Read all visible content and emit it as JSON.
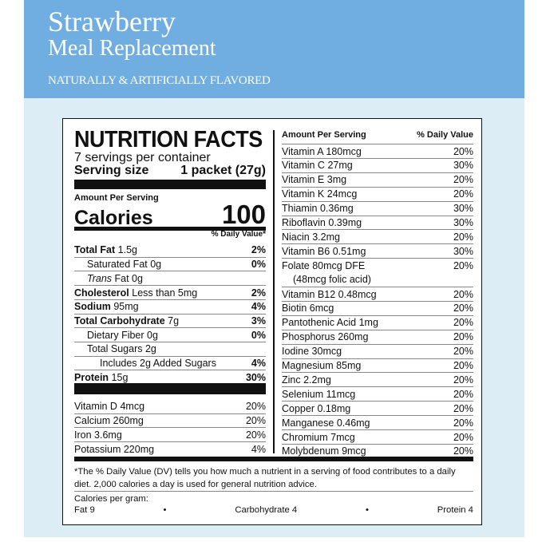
{
  "header": {
    "flavor": "Strawberry",
    "product": "Meal Replacement",
    "flavoring": "NATURALLY & ARTIFICIALLY FLAVORED"
  },
  "colors": {
    "band": "#70ade0",
    "background": "#dcedf6"
  },
  "label": {
    "title": "NUTRITION FACTS",
    "servings": "7 servings per container",
    "serving_size_label": "Serving size",
    "serving_size_value": "1 packet (27g)",
    "amount_per_serving": "Amount Per Serving",
    "calories_label": "Calories",
    "calories_value": "100",
    "dv_header": "% Daily Value*",
    "left_rows": [
      {
        "label": "Total Fat",
        "amount": "1.5g",
        "dv": "2%",
        "bold": true,
        "indent": 0
      },
      {
        "label": "Saturated Fat",
        "amount": "0g",
        "dv": "0%",
        "bold": false,
        "indent": 1,
        "bold_dv": true
      },
      {
        "label": "Trans",
        "amount": "Fat 0g",
        "dv": "",
        "italic": true,
        "indent": 1
      },
      {
        "label": "Cholesterol",
        "amount": "Less than 5mg",
        "dv": "2%",
        "bold": true,
        "indent": 0
      },
      {
        "label": "Sodium",
        "amount": "95mg",
        "dv": "4%",
        "bold": true,
        "indent": 0
      },
      {
        "label": "Total Carbohydrate",
        "amount": "7g",
        "dv": "3%",
        "bold": true,
        "indent": 0
      },
      {
        "label": "Dietary Fiber",
        "amount": "0g",
        "dv": "0%",
        "indent": 1,
        "bold_dv": true
      },
      {
        "label": "Total Sugars",
        "amount": "2g",
        "dv": "",
        "indent": 1
      },
      {
        "label": "Includes 2g Added Sugars",
        "amount": "",
        "dv": "4%",
        "indent": 2,
        "bold_dv": true
      },
      {
        "label": "Protein",
        "amount": "15g",
        "dv": "30%",
        "bold": true,
        "indent": 0
      }
    ],
    "vitamin_rows": [
      {
        "label": "Vitamin D",
        "amount": "4mcg",
        "dv": "20%"
      },
      {
        "label": "Calcium",
        "amount": "260mg",
        "dv": "20%"
      },
      {
        "label": "Iron",
        "amount": "3.6mg",
        "dv": "20%"
      },
      {
        "label": "Potassium",
        "amount": "220mg",
        "dv": "4%"
      }
    ],
    "right_header": {
      "amount": "Amount Per Serving",
      "dv": "% Daily Value"
    },
    "right_rows": [
      {
        "label": "Vitamin A",
        "amount": "180mcg",
        "dv": "20%"
      },
      {
        "label": "Vitamin C",
        "amount": "27mg",
        "dv": "30%"
      },
      {
        "label": "Vitamin E",
        "amount": "3mg",
        "dv": "20%"
      },
      {
        "label": "Vitamin K",
        "amount": "24mcg",
        "dv": "20%"
      },
      {
        "label": "Thiamin",
        "amount": "0.36mg",
        "dv": "30%"
      },
      {
        "label": "Riboflavin",
        "amount": "0.39mg",
        "dv": "30%"
      },
      {
        "label": "Niacin",
        "amount": "3.2mg",
        "dv": "20%"
      },
      {
        "label": "Vitamin B6",
        "amount": "0.51mg",
        "dv": "30%"
      },
      {
        "label": "Folate",
        "amount": "80mcg DFE",
        "dv": "20%"
      },
      {
        "label": "(48mcg folic acid)",
        "amount": "",
        "dv": "",
        "continuation": true
      },
      {
        "label": "Vitamin B12",
        "amount": "0.48mcg",
        "dv": "20%"
      },
      {
        "label": "Biotin",
        "amount": "6mcg",
        "dv": "20%"
      },
      {
        "label": "Pantothenic Acid",
        "amount": "1mg",
        "dv": "20%"
      },
      {
        "label": "Phosphorus",
        "amount": "260mg",
        "dv": "20%"
      },
      {
        "label": "Iodine",
        "amount": "30mcg",
        "dv": "20%"
      },
      {
        "label": "Magnesium",
        "amount": "85mg",
        "dv": "20%"
      },
      {
        "label": "Zinc",
        "amount": "2.2mg",
        "dv": "20%"
      },
      {
        "label": "Selenium",
        "amount": "11mcg",
        "dv": "20%"
      },
      {
        "label": "Copper",
        "amount": "0.18mg",
        "dv": "20%"
      },
      {
        "label": "Manganese",
        "amount": "0.46mg",
        "dv": "20%"
      },
      {
        "label": "Chromium",
        "amount": "7mcg",
        "dv": "20%"
      },
      {
        "label": "Molybdenum",
        "amount": "9mcg",
        "dv": "20%"
      }
    ],
    "footnote": "*The % Daily Value (DV) tells you how much a nutrient in a serving of food contributes to a daily diet. 2,000 calories a day is used for general nutrition advice.",
    "calories_per_gram_label": "Calories per gram:",
    "calories_per_gram": [
      "Fat 9",
      "•",
      "Carbohydrate 4",
      "•",
      "Protein 4"
    ]
  }
}
